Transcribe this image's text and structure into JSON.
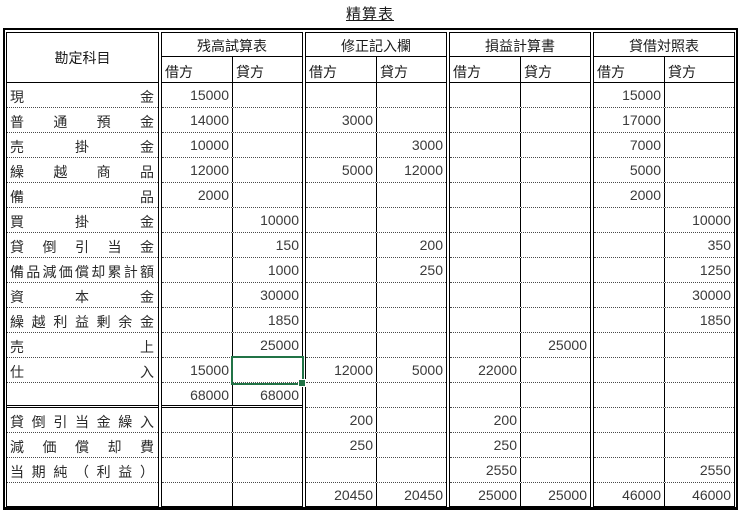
{
  "title": "精算表",
  "colors": {
    "selection_green": "#217346",
    "grid_black": "#000000"
  },
  "table": {
    "account_header": "勘定科目",
    "sections": [
      {
        "label": "残高試算表",
        "debit_label": "借方",
        "credit_label": "貸方"
      },
      {
        "label": "修正記入欄",
        "debit_label": "借方",
        "credit_label": "貸方"
      },
      {
        "label": "損益計算書",
        "debit_label": "借方",
        "credit_label": "貸方"
      },
      {
        "label": "貸借対照表",
        "debit_label": "借方",
        "credit_label": "貸方"
      }
    ],
    "rows": [
      [
        "現金",
        "15000",
        "",
        "",
        "",
        "",
        "",
        "15000",
        ""
      ],
      [
        "普通預金",
        "14000",
        "",
        "3000",
        "",
        "",
        "",
        "17000",
        ""
      ],
      [
        "売掛金",
        "10000",
        "",
        "",
        "3000",
        "",
        "",
        "7000",
        ""
      ],
      [
        "繰越商品",
        "12000",
        "",
        "5000",
        "12000",
        "",
        "",
        "5000",
        ""
      ],
      [
        "備品",
        "2000",
        "",
        "",
        "",
        "",
        "",
        "2000",
        ""
      ],
      [
        "買掛金",
        "",
        "10000",
        "",
        "",
        "",
        "",
        "",
        "10000"
      ],
      [
        "貸倒引当金",
        "",
        "150",
        "",
        "200",
        "",
        "",
        "",
        "350"
      ],
      [
        "備品減価償却累計額",
        "",
        "1000",
        "",
        "250",
        "",
        "",
        "",
        "1250"
      ],
      [
        "資本金",
        "",
        "30000",
        "",
        "",
        "",
        "",
        "",
        "30000"
      ],
      [
        "繰越利益剰余金",
        "",
        "1850",
        "",
        "",
        "",
        "",
        "",
        "1850"
      ],
      [
        "売上",
        "",
        "25000",
        "",
        "",
        "",
        "25000",
        "",
        ""
      ],
      [
        "仕入",
        "15000",
        "",
        "12000",
        "5000",
        "22000",
        "",
        "",
        ""
      ],
      [
        "",
        "68000",
        "68000",
        "",
        "",
        "",
        "",
        "",
        ""
      ],
      [
        "貸倒引当金繰入",
        "",
        "",
        "200",
        "",
        "200",
        "",
        "",
        ""
      ],
      [
        "減価償却費",
        "",
        "",
        "250",
        "",
        "250",
        "",
        "",
        ""
      ],
      [
        "当期純（利益）",
        "",
        "",
        "",
        "",
        "2550",
        "",
        "",
        "2550"
      ],
      [
        "",
        "",
        "",
        "20450",
        "20450",
        "25000",
        "25000",
        "46000",
        "46000"
      ]
    ],
    "selection": {
      "row_index": 11,
      "column": "残高試算表-貸方",
      "value": ""
    }
  }
}
